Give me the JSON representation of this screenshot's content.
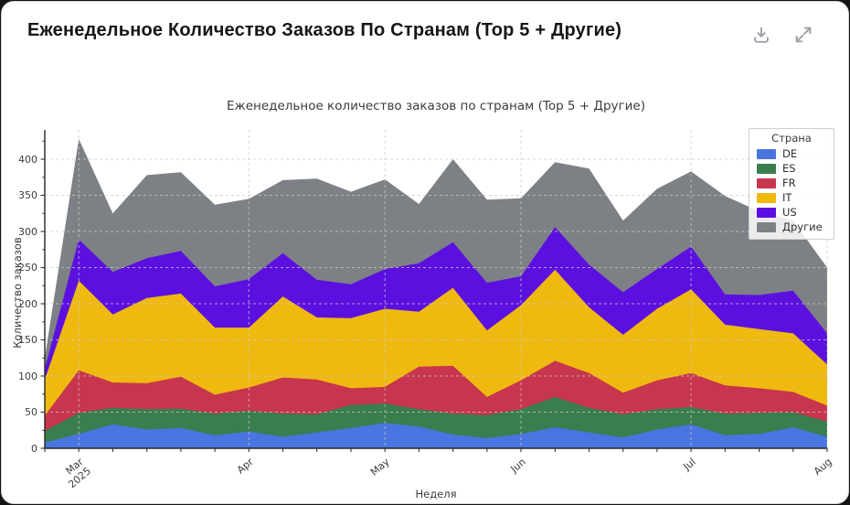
{
  "header": {
    "title": "Еженедельное Количество Заказов По Странам (Top 5 + Другие)"
  },
  "icons": {
    "download": "tray-arrow-down",
    "expand": "arrows-expand-diagonal"
  },
  "chart_data": {
    "type": "area",
    "stacked": true,
    "title": "Еженедельное количество заказов по странам (Top 5 + Другие)",
    "xlabel": "Неделя",
    "ylabel": "Количество заказов",
    "legend_title": "Страна",
    "legend_position": "top-right",
    "grid": true,
    "n_points": 24,
    "ylim": [
      0,
      440
    ],
    "y_ticks": [
      0,
      50,
      100,
      150,
      200,
      250,
      300,
      350,
      400
    ],
    "x_ticks": [
      {
        "i": 1,
        "label": "Mar",
        "sub": "2025"
      },
      {
        "i": 6,
        "label": "Apr",
        "sub": ""
      },
      {
        "i": 10,
        "label": "May",
        "sub": ""
      },
      {
        "i": 14,
        "label": "Jun",
        "sub": ""
      },
      {
        "i": 19,
        "label": "Jul",
        "sub": ""
      },
      {
        "i": 23,
        "label": "Aug",
        "sub": ""
      }
    ],
    "series": [
      {
        "name": "DE",
        "color": "#4a74e0",
        "values": [
          8,
          20,
          33,
          26,
          28,
          18,
          23,
          16,
          22,
          28,
          35,
          30,
          19,
          14,
          20,
          29,
          22,
          15,
          26,
          33,
          18,
          20,
          29,
          16
        ]
      },
      {
        "name": "ES",
        "color": "#3a7d4f",
        "values": [
          16,
          29,
          23,
          28,
          27,
          30,
          29,
          32,
          25,
          32,
          27,
          24,
          29,
          32,
          34,
          42,
          34,
          32,
          28,
          24,
          30,
          29,
          21,
          21
        ]
      },
      {
        "name": "FR",
        "color": "#c8354e",
        "values": [
          21,
          59,
          35,
          36,
          44,
          26,
          32,
          50,
          48,
          23,
          23,
          59,
          66,
          25,
          40,
          50,
          48,
          30,
          40,
          47,
          39,
          34,
          28,
          22
        ]
      },
      {
        "name": "IT",
        "color": "#efb90f",
        "values": [
          50,
          124,
          94,
          118,
          115,
          93,
          83,
          112,
          86,
          97,
          108,
          76,
          108,
          92,
          104,
          126,
          91,
          80,
          99,
          116,
          84,
          82,
          81,
          57
        ]
      },
      {
        "name": "US",
        "color": "#5c10e0",
        "values": [
          15,
          57,
          59,
          55,
          59,
          57,
          67,
          60,
          52,
          47,
          55,
          67,
          63,
          66,
          40,
          59,
          59,
          59,
          55,
          59,
          42,
          47,
          59,
          43
        ]
      },
      {
        "name": "Другие",
        "color": "#7d8186",
        "values": [
          15,
          139,
          81,
          115,
          109,
          113,
          111,
          101,
          140,
          128,
          124,
          82,
          115,
          115,
          108,
          90,
          133,
          99,
          111,
          104,
          136,
          116,
          97,
          91
        ]
      }
    ],
    "axis_color": "#262626",
    "grid_color": "#c9c9c9"
  }
}
